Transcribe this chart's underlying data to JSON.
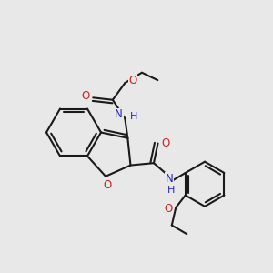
{
  "bg_color": "#e8e8e8",
  "bond_color": "#1a1a1a",
  "nitrogen_color": "#2222cc",
  "oxygen_color": "#cc2222",
  "bond_width": 1.5,
  "figsize": [
    3.0,
    3.0
  ],
  "dpi": 100,
  "xlim": [
    0,
    10
  ],
  "ylim": [
    0,
    10
  ]
}
